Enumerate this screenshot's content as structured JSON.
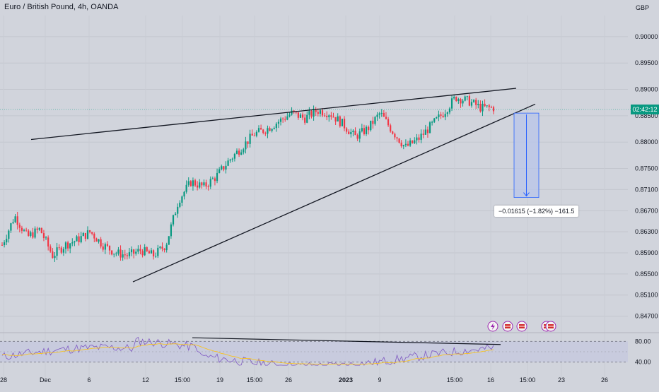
{
  "title": "Euro / British Pound, 4h, OANDA",
  "currency": "GBP",
  "last_price_tag": "02:42:12",
  "measure_label": "−0.01615 (−1.82%) −161.5",
  "colors": {
    "up": "#089981",
    "down": "#f23645",
    "background": "#d1d4dc",
    "measure_fill": "#b8c6ea",
    "measure_line": "#2962ff",
    "rsi": "#7e57c2",
    "rsi_ma": "#f7c325"
  },
  "event_icons": [
    "lightning-icon",
    "flag-icon",
    "flag-icon",
    "flag-icon",
    "flag-icon"
  ],
  "chart_data": {
    "type": "candlestick",
    "price_axis": {
      "min": 0.844,
      "max": 0.904,
      "ticks": [
        0.9,
        0.895,
        0.89,
        0.885,
        0.88,
        0.875,
        0.871,
        0.867,
        0.863,
        0.859,
        0.855,
        0.851,
        0.847
      ]
    },
    "price_tick_labels": [
      "0.90000",
      "0.89500",
      "0.89000",
      "0.88500",
      "0.88000",
      "0.87500",
      "0.87100",
      "0.86700",
      "0.86300",
      "0.85900",
      "0.85500",
      "0.85100",
      "0.84700"
    ],
    "time_ticks": [
      "28",
      "Dec",
      "6",
      "12",
      "15:00",
      "19",
      "15:00",
      "26",
      "2023",
      "9",
      "15:00",
      "16",
      "15:00",
      "23",
      "26"
    ],
    "close_anchors": [
      0.8605,
      0.866,
      0.862,
      0.8635,
      0.8585,
      0.8605,
      0.8615,
      0.863,
      0.8605,
      0.859,
      0.8585,
      0.8595,
      0.8585,
      0.8605,
      0.869,
      0.8725,
      0.8715,
      0.8735,
      0.8765,
      0.879,
      0.8815,
      0.8825,
      0.884,
      0.8855,
      0.8845,
      0.886,
      0.8855,
      0.8835,
      0.881,
      0.8825,
      0.8855,
      0.882,
      0.879,
      0.8805,
      0.883,
      0.8855,
      0.8885,
      0.8878,
      0.8865,
      0.8865
    ],
    "trendlines": [
      {
        "from": [
          "28",
          0.8805
        ],
        "to": [
          "16",
          0.8895
        ]
      },
      {
        "from": [
          "12",
          0.8535
        ],
        "to": [
          "16",
          0.886
        ]
      }
    ],
    "measure": {
      "top": 0.8855,
      "bottom": 0.8695,
      "change": -0.01615,
      "change_pct": -1.82,
      "pips": -161.5
    },
    "rsi": {
      "levels": [
        80,
        40
      ],
      "level_labels": [
        "80.00",
        "40.00"
      ],
      "range": [
        30,
        90
      ]
    }
  }
}
